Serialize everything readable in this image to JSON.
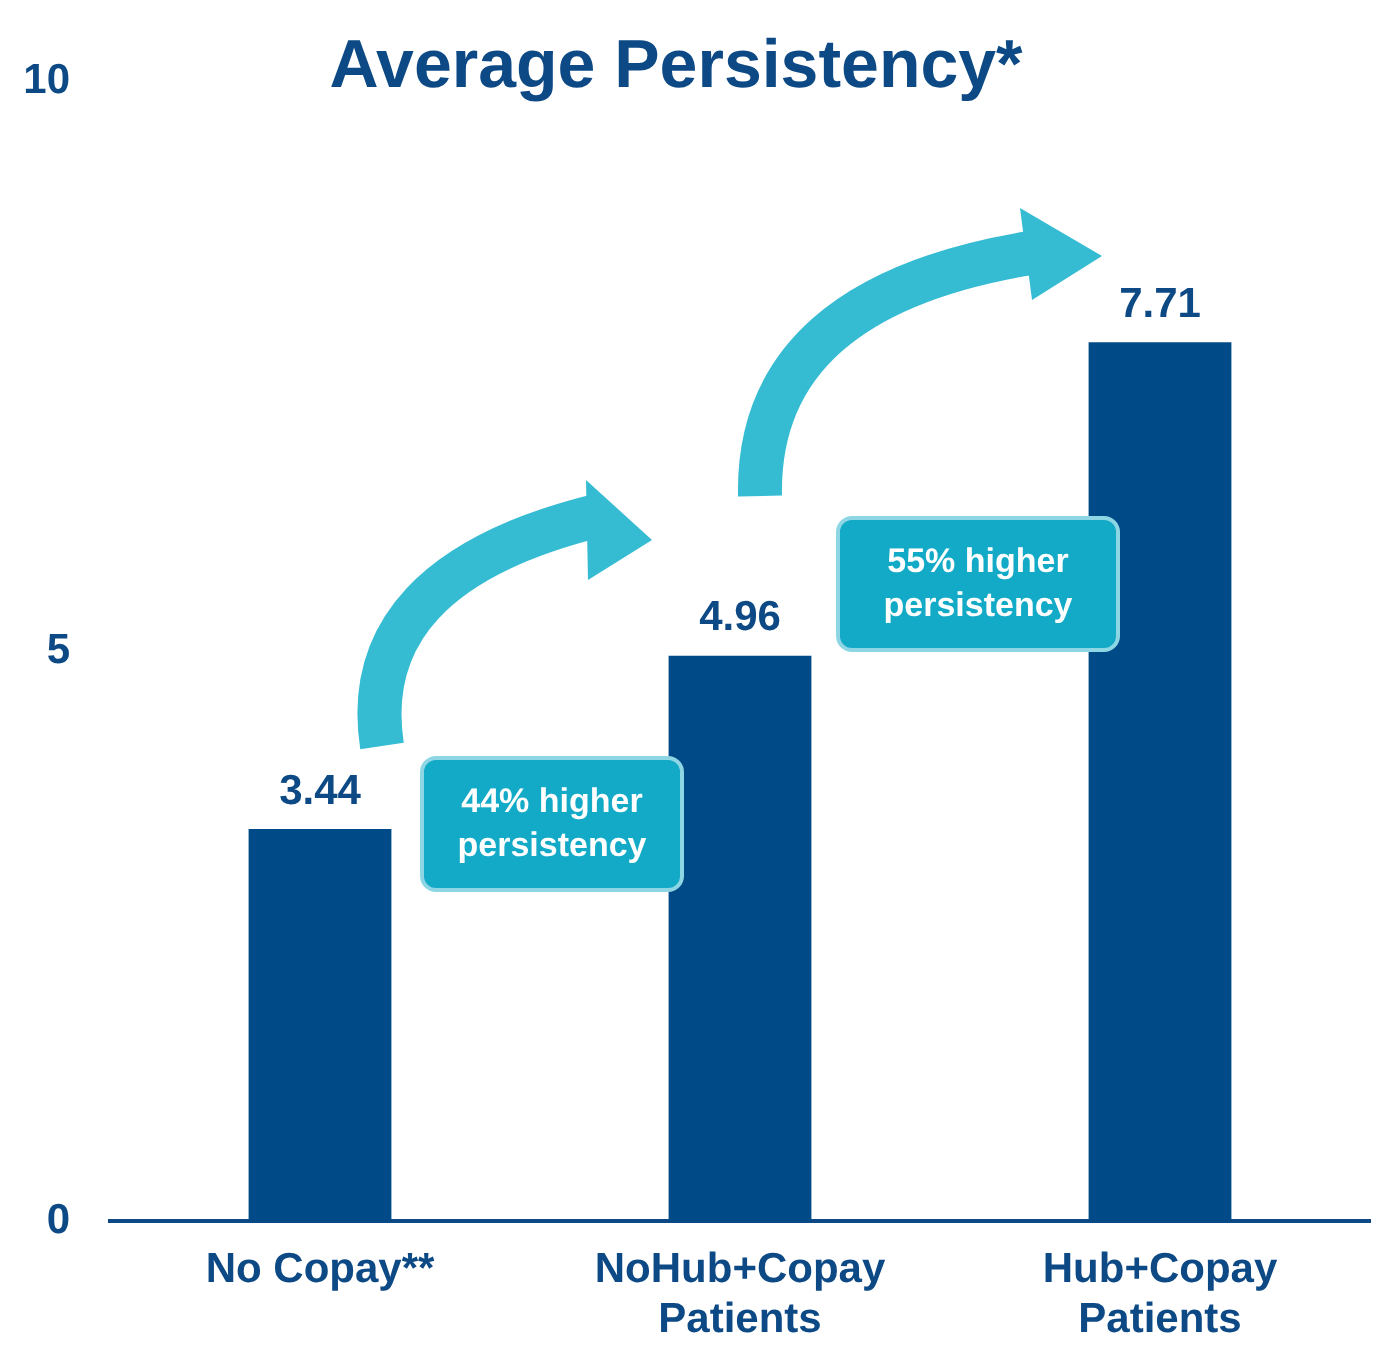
{
  "chart_data": {
    "type": "bar",
    "title": "Average Persistency*",
    "categories": [
      "No Copay**",
      "NoHub+Copay Patients",
      "Hub+Copay Patients"
    ],
    "values": [
      3.44,
      4.96,
      7.71
    ],
    "color": "#004a87",
    "ylim": [
      0,
      10
    ],
    "yticks": [
      0,
      5,
      10
    ],
    "grid": false,
    "legend": false,
    "data_labels": true,
    "annotations": [
      "44% higher persistency",
      "55% higher persistency"
    ]
  }
}
